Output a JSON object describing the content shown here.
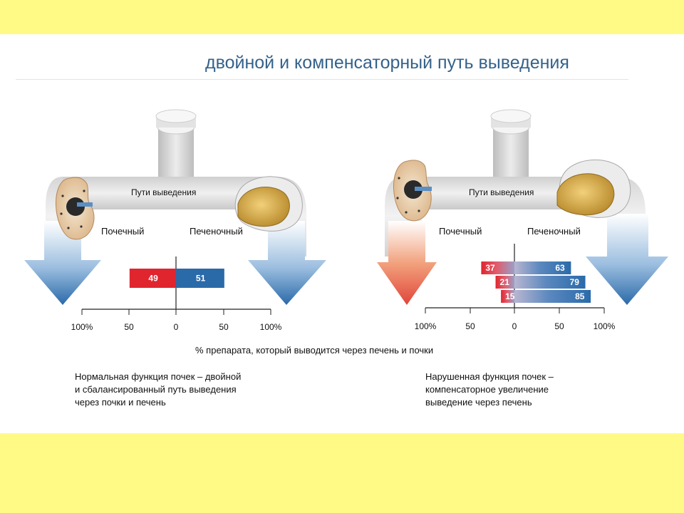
{
  "slide": {
    "title": "двойной и компенсаторный путь выведения",
    "colors": {
      "background": "#fffa86",
      "renal": "#e0252f",
      "hepatic": "#2a6aa9",
      "title": "#35628a"
    }
  },
  "left": {
    "pathway_label": "Пути выведения",
    "renal_label": "Почечный",
    "hepatic_label": "Печеночный",
    "ticks": [
      "100%",
      "50",
      "0",
      "50",
      "100%"
    ],
    "caption": [
      "Нормальная функция почек – двойной",
      "и сбалансированный путь выведения",
      "через почки и печень"
    ]
  },
  "right": {
    "pathway_label": "Пути выведения",
    "renal_label": "Почечный",
    "hepatic_label": "Печеночный",
    "ticks": [
      "100%",
      "50",
      "0",
      "50",
      "100%"
    ],
    "caption": [
      "Нарушенная функция почек –",
      "компенсаторное увеличение",
      "выведение через печень"
    ]
  },
  "axis_label": "% препарата, который выводится через печень и почки",
  "chart_data": [
    {
      "type": "bar",
      "orientation": "horizontal-diverging",
      "axis_range": [
        -100,
        100
      ],
      "series": [
        {
          "renal": 49,
          "hepatic": 51
        }
      ]
    },
    {
      "type": "bar",
      "orientation": "horizontal-diverging",
      "axis_range": [
        -100,
        100
      ],
      "series": [
        {
          "renal": 37,
          "hepatic": 63
        },
        {
          "renal": 21,
          "hepatic": 79
        },
        {
          "renal": 15,
          "hepatic": 85
        }
      ]
    }
  ]
}
